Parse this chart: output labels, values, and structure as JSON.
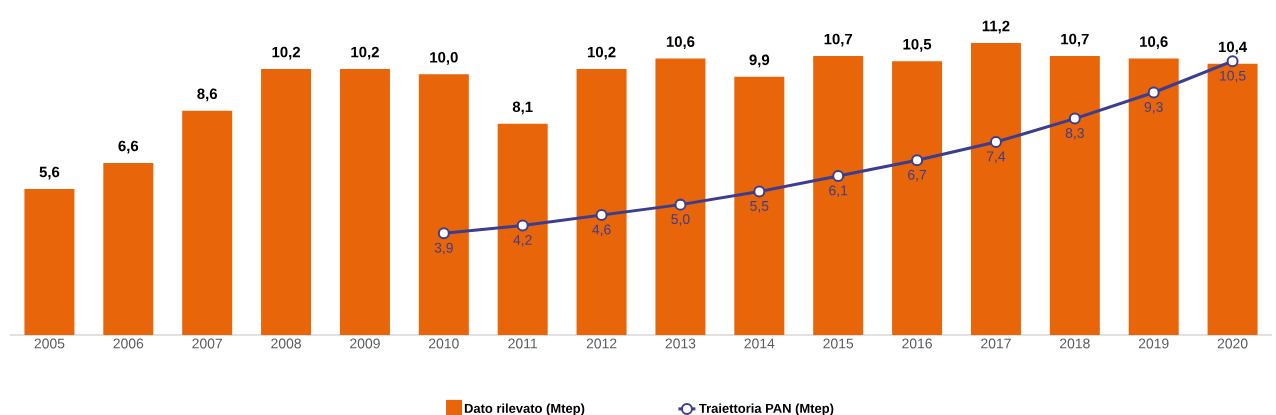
{
  "chart_data": {
    "type": "bar",
    "categories": [
      "2005",
      "2006",
      "2007",
      "2008",
      "2009",
      "2010",
      "2011",
      "2012",
      "2013",
      "2014",
      "2015",
      "2016",
      "2017",
      "2018",
      "2019",
      "2020"
    ],
    "series": [
      {
        "name": "Dato rilevato (Mtep)",
        "color": "#e8650a",
        "values": [
          5.6,
          6.6,
          8.6,
          10.2,
          10.2,
          10.0,
          8.1,
          10.2,
          10.6,
          9.9,
          10.7,
          10.5,
          11.2,
          10.7,
          10.6,
          10.4
        ],
        "value_labels": [
          "5,6",
          "6,6",
          "8,6",
          "10,2",
          "10,2",
          "10,0",
          "8,1",
          "10,2",
          "10,6",
          "9,9",
          "10,7",
          "10,5",
          "11,2",
          "10,7",
          "10,6",
          "10,4"
        ]
      },
      {
        "name": "Traiettoria PAN (Mtep)",
        "type": "line",
        "color": "#3b3d8f",
        "values": [
          null,
          null,
          null,
          null,
          null,
          3.9,
          4.2,
          4.6,
          5.0,
          5.5,
          6.1,
          6.7,
          7.4,
          8.3,
          9.3,
          10.5
        ],
        "value_labels": [
          null,
          null,
          null,
          null,
          null,
          "3,9",
          "4,2",
          "4,6",
          "5,0",
          "5,5",
          "6,1",
          "6,7",
          "7,4",
          "8,3",
          "9,3",
          "10,5"
        ]
      }
    ],
    "legend": "bottom",
    "marker": "circle"
  }
}
